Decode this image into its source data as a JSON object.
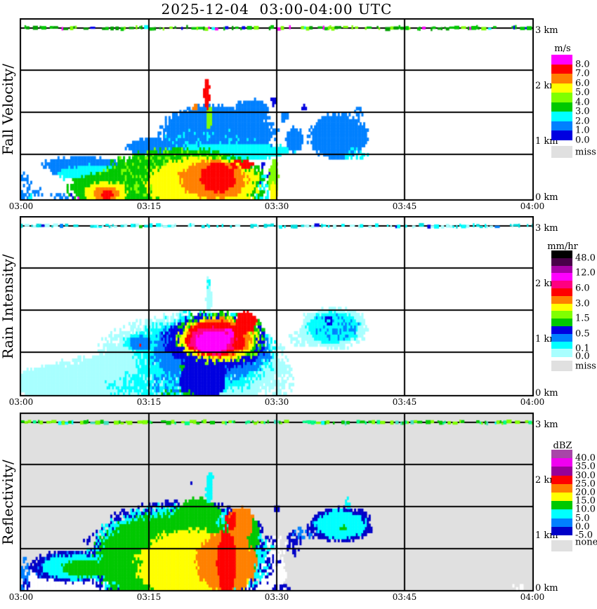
{
  "title": "2025-12-04  03:00-04:00 UTC",
  "x_axis": {
    "labels": [
      "03:00",
      "03:15",
      "03:30",
      "03:45",
      "04:00"
    ]
  },
  "y_axis": {
    "labels": [
      "3 km",
      "2 km",
      "1 km",
      "0 km"
    ]
  },
  "chart_data": [
    {
      "type": "heatmap",
      "name": "fall-velocity",
      "axis_label": "Fall Velocity/",
      "unit": "m/s",
      "time_range": [
        "03:00",
        "04:00"
      ],
      "height_range_km": [
        0,
        3
      ],
      "background": "#FFFFFF",
      "legend": {
        "title": "m/s",
        "labels": [
          "8.0",
          "7.0",
          "6.0",
          "5.0",
          "4.0",
          "3.0",
          "2.0",
          "1.0",
          "0.0"
        ],
        "label_boundaries": [
          1,
          2,
          3,
          4,
          5,
          6,
          7,
          8,
          9
        ],
        "swatches": [
          "#FF00FF",
          "#FF0000",
          "#FF8000",
          "#FFFF00",
          "#80FF00",
          "#00C800",
          "#00FFFF",
          "#0080FF",
          "#0000E0"
        ],
        "missing_label": "miss",
        "missing_color": "#E0E0E0"
      },
      "palette": [
        "#0000E0",
        "#0080FF",
        "#00FFFF",
        "#00C800",
        "#80FF00",
        "#FFFF00",
        "#FF8000",
        "#FF0000",
        "#FF00FF"
      ],
      "strip": {
        "main": [
          "#80FF00",
          "#00C800",
          "#00A000"
        ],
        "rare": [
          "#0000F0",
          "#FF00FF",
          "#00FFFF"
        ],
        "density": 0.5
      },
      "seed": 11,
      "blobs": [
        [
          0.385,
          1.17,
          0.118,
          0.5,
          1,
          0.35,
          1
        ],
        [
          0.255,
          0.92,
          0.05,
          0.16,
          1,
          0.4,
          1
        ],
        [
          0.45,
          1.58,
          0.035,
          0.18,
          1,
          0.4,
          1
        ],
        [
          0.4,
          1.32,
          0.1,
          0.35,
          0,
          0.8,
          0.22
        ],
        [
          0.36,
          1.02,
          0.09,
          0.22,
          2,
          0.8,
          0.18
        ],
        [
          0.415,
          0.85,
          0.12,
          0.15,
          2,
          0.4,
          1
        ],
        [
          0.62,
          1.1,
          0.06,
          0.42,
          1,
          0.35,
          1
        ],
        [
          0.62,
          1.15,
          0.05,
          0.33,
          0,
          0.7,
          0.28
        ],
        [
          0.655,
          0.8,
          0.025,
          0.13,
          2,
          0.5,
          0.5
        ],
        [
          0.66,
          1.52,
          0.01,
          0.1,
          1,
          0.5,
          0.6
        ],
        [
          0.535,
          1.05,
          0.018,
          0.22,
          1,
          0.5,
          1
        ],
        [
          0.515,
          1.45,
          0.01,
          0.09,
          1,
          0.4,
          0.7
        ],
        [
          0.553,
          1.6,
          0.005,
          0.06,
          0,
          0.3,
          0.8
        ],
        [
          0.492,
          1.72,
          0.006,
          0.09,
          0,
          0.3,
          0.8
        ],
        [
          0.363,
          1.85,
          0.006,
          0.28,
          7,
          0.3,
          1
        ],
        [
          0.363,
          2.07,
          0.005,
          0.06,
          6,
          0.3,
          1
        ],
        [
          0.368,
          1.42,
          0.006,
          0.22,
          4,
          0.4,
          1
        ],
        [
          0.34,
          1.62,
          0.005,
          0.05,
          6,
          0.3,
          0.9
        ],
        [
          0.315,
          0.3,
          0.17,
          0.64,
          3,
          0.35,
          1
        ],
        [
          0.33,
          0.72,
          0.085,
          0.16,
          3,
          0.5,
          1
        ],
        [
          0.3,
          0.45,
          0.14,
          0.45,
          4,
          0.7,
          0.25
        ],
        [
          0.355,
          0.28,
          0.115,
          0.5,
          5,
          0.35,
          1
        ],
        [
          0.295,
          0.3,
          0.009,
          0.3,
          3,
          0.3,
          0.85
        ],
        [
          0.322,
          0.25,
          0.007,
          0.25,
          3,
          0.3,
          0.85
        ],
        [
          0.375,
          0.35,
          0.07,
          0.36,
          6,
          0.35,
          1
        ],
        [
          0.385,
          0.38,
          0.037,
          0.28,
          7,
          0.3,
          1
        ],
        [
          0.43,
          0.62,
          0.025,
          0.08,
          7,
          0.3,
          0.8
        ],
        [
          0.12,
          0.62,
          0.08,
          0.14,
          1,
          0.45,
          1
        ],
        [
          0.072,
          0.55,
          0.017,
          0.14,
          1,
          0.4,
          1
        ],
        [
          0.145,
          0.45,
          0.075,
          0.17,
          2,
          0.45,
          1
        ],
        [
          0.175,
          0.2,
          0.088,
          0.3,
          3,
          0.4,
          1
        ],
        [
          0.165,
          0.13,
          0.045,
          0.2,
          5,
          0.5,
          1
        ],
        [
          0.165,
          0.1,
          0.026,
          0.14,
          6,
          0.35,
          1
        ],
        [
          0.168,
          0.08,
          0.012,
          0.09,
          7,
          0.3,
          1
        ],
        [
          0.006,
          0.2,
          0.014,
          0.25,
          1,
          0.6,
          0.55
        ],
        [
          0.033,
          0.1,
          0.012,
          0.13,
          1,
          0.5,
          0.5
        ],
        [
          0.075,
          0.06,
          0.018,
          0.08,
          1,
          0.5,
          0.45
        ],
        [
          0.1,
          0.05,
          0.008,
          0.05,
          0,
          0.4,
          0.6
        ],
        [
          0.115,
          0.03,
          0.004,
          0.03,
          8,
          0.3,
          0.8
        ],
        [
          0.02,
          0.04,
          0.006,
          0.04,
          2,
          0.4,
          0.7
        ],
        [
          0.494,
          0.3,
          0.01,
          0.42,
          4,
          0.35,
          1
        ],
        [
          0.494,
          0.12,
          0.007,
          0.18,
          5,
          0.3,
          1
        ],
        [
          0.468,
          0.2,
          0.022,
          0.3,
          2,
          0.6,
          0.6
        ],
        [
          0.47,
          0.45,
          0.018,
          0.19,
          0,
          0.5,
          0.35
        ]
      ]
    },
    {
      "type": "heatmap",
      "name": "rain-intensity",
      "axis_label": "Rain Intensity/",
      "unit": "mm/hr",
      "time_range": [
        "03:00",
        "04:00"
      ],
      "height_range_km": [
        0,
        3
      ],
      "background": "#FFFFFF",
      "legend": {
        "title": "mm/hr",
        "labels": [
          "48.0",
          "12.0",
          "6.0",
          "3.0",
          "1.5",
          "0.5",
          "0.1",
          "0.0"
        ],
        "label_boundaries": [
          1,
          3,
          5,
          7,
          9,
          11,
          13,
          14
        ],
        "swatches": [
          "#000000",
          "#480048",
          "#A800A8",
          "#FF00FF",
          "#FF0080",
          "#FF0000",
          "#FF8000",
          "#FFFF00",
          "#80FF00",
          "#00C800",
          "#0000E0",
          "#0080FF",
          "#00FFFF",
          "#A8FFFF"
        ],
        "missing_label": "miss",
        "missing_color": "#E0E0E0"
      },
      "palette": [
        "#A8FFFF",
        "#00FFFF",
        "#0080FF",
        "#0000E0",
        "#00C800",
        "#80FF00",
        "#FFFF00",
        "#FF8000",
        "#FF0000",
        "#FF0080",
        "#FF00FF",
        "#A800A8",
        "#480048",
        "#000000"
      ],
      "strip": {
        "main": [
          "#00FFFF",
          "#A8FFFF",
          "#00E0E0"
        ],
        "rare": [
          "#0080FF",
          "#0000E0",
          "#00C800"
        ],
        "density": 0.45
      },
      "seed": 22,
      "blobs": [
        [
          0.33,
          0.55,
          0.19,
          0.92,
          0,
          0.45,
          1
        ],
        [
          0.22,
          0.25,
          0.2,
          0.5,
          0,
          0.45,
          1
        ],
        [
          0.08,
          0.2,
          0.1,
          0.35,
          0,
          0.5,
          1
        ],
        [
          0.03,
          0.1,
          0.02,
          0.15,
          0,
          0.5,
          0.5
        ],
        [
          0.367,
          1.7,
          0.006,
          0.35,
          0,
          0.3,
          1
        ],
        [
          0.367,
          1.97,
          0.004,
          0.08,
          1,
          0.3,
          0.7
        ],
        [
          0.36,
          0.75,
          0.14,
          0.75,
          1,
          0.45,
          0.9
        ],
        [
          0.28,
          0.3,
          0.08,
          0.4,
          1,
          0.6,
          0.6
        ],
        [
          0.21,
          0.15,
          0.05,
          0.2,
          1,
          0.5,
          0.4
        ],
        [
          0.37,
          0.8,
          0.12,
          0.58,
          2,
          0.4,
          1
        ],
        [
          0.355,
          0.3,
          0.048,
          0.48,
          3,
          0.35,
          1
        ],
        [
          0.38,
          0.95,
          0.105,
          0.52,
          3,
          0.4,
          1
        ],
        [
          0.39,
          1.05,
          0.09,
          0.46,
          4,
          0.5,
          0.55
        ],
        [
          0.39,
          1.0,
          0.085,
          0.44,
          5,
          0.6,
          0.35
        ],
        [
          0.385,
          1.0,
          0.08,
          0.4,
          6,
          0.4,
          1
        ],
        [
          0.39,
          1.02,
          0.067,
          0.36,
          7,
          0.35,
          1
        ],
        [
          0.38,
          1.0,
          0.062,
          0.33,
          8,
          0.3,
          1
        ],
        [
          0.44,
          1.3,
          0.022,
          0.2,
          8,
          0.35,
          1
        ],
        [
          0.375,
          0.97,
          0.048,
          0.26,
          9,
          0.3,
          1
        ],
        [
          0.373,
          0.95,
          0.036,
          0.2,
          10,
          0.3,
          1
        ],
        [
          0.405,
          1.08,
          0.013,
          0.1,
          10,
          0.3,
          0.9
        ],
        [
          0.3,
          0.2,
          0.05,
          0.25,
          2,
          0.7,
          0.4
        ],
        [
          0.3,
          0.05,
          0.05,
          0.06,
          4,
          0.4,
          0.3
        ],
        [
          0.315,
          0.5,
          0.006,
          0.05,
          4,
          0.3,
          0.8
        ],
        [
          0.235,
          0.93,
          0.035,
          0.18,
          1,
          0.5,
          1
        ],
        [
          0.235,
          0.93,
          0.024,
          0.13,
          2,
          0.4,
          1
        ],
        [
          0.232,
          0.9,
          0.005,
          0.04,
          8,
          0.3,
          0.85
        ],
        [
          0.61,
          1.2,
          0.07,
          0.38,
          0,
          0.45,
          1
        ],
        [
          0.61,
          1.2,
          0.055,
          0.3,
          1,
          0.4,
          1
        ],
        [
          0.615,
          1.22,
          0.045,
          0.24,
          2,
          0.7,
          0.35
        ],
        [
          0.6,
          1.32,
          0.01,
          0.08,
          3,
          0.3,
          0.7
        ],
        [
          0.55,
          1.0,
          0.03,
          0.15,
          0,
          0.5,
          0.6
        ],
        [
          0.51,
          0.3,
          0.025,
          0.35,
          0,
          0.6,
          0.5
        ],
        [
          0.367,
          2.1,
          0.005,
          0.1,
          0,
          0.4,
          0.6
        ]
      ]
    },
    {
      "type": "heatmap",
      "name": "reflectivity",
      "axis_label": "Reflectivity/",
      "unit": "dBZ",
      "time_range": [
        "03:00",
        "04:00"
      ],
      "height_range_km": [
        0,
        3
      ],
      "background": "#E0E0E0",
      "legend": {
        "title": "dBZ",
        "labels": [
          "40.0",
          "35.0",
          "30.0",
          "25.0",
          "20.0",
          "15.0",
          "10.0",
          "5.0",
          "0.0",
          "-5.0"
        ],
        "label_boundaries": [
          1,
          2,
          3,
          4,
          5,
          6,
          7,
          8,
          9,
          10
        ],
        "swatches": [
          "#A846A8",
          "#F000F0",
          "#980098",
          "#FF0000",
          "#FF8000",
          "#FFFF00",
          "#00C800",
          "#00FFFF",
          "#0080FF",
          "#0000C8"
        ],
        "missing_label": "none",
        "missing_color": "#E0E0E0"
      },
      "palette": [
        "#FFFFFF",
        "#0000C8",
        "#0080FF",
        "#00FFFF",
        "#00C800",
        "#FFFF00",
        "#FF8000",
        "#FF0000",
        "#980098",
        "#F000F0",
        "#A846A8"
      ],
      "strip": {
        "main": [
          "#00C800",
          "#00FF88",
          "#80FF00"
        ],
        "rare": [
          "#00FFFF",
          "#40E0C0"
        ],
        "density": 0.55
      },
      "seed": 33,
      "blobs": [
        [
          0.09,
          0.15,
          0.105,
          0.35,
          0,
          0.45,
          1
        ],
        [
          0.3,
          0.06,
          0.21,
          0.14,
          0,
          0.5,
          1
        ],
        [
          0.49,
          0.25,
          0.03,
          0.45,
          0,
          0.45,
          1
        ],
        [
          0.5,
          0.78,
          0.02,
          0.2,
          0,
          0.5,
          0.6
        ],
        [
          0.01,
          0.07,
          0.015,
          0.1,
          0,
          0.4,
          0.7
        ],
        [
          0.31,
          0.6,
          0.19,
          1.02,
          1,
          0.45,
          0.8
        ],
        [
          0.31,
          0.6,
          0.18,
          0.95,
          3,
          0.4,
          1
        ],
        [
          0.3,
          0.55,
          0.162,
          0.88,
          4,
          0.35,
          1
        ],
        [
          0.345,
          1.35,
          0.048,
          0.3,
          4,
          0.45,
          1
        ],
        [
          0.44,
          1.0,
          0.028,
          0.4,
          4,
          0.4,
          1
        ],
        [
          0.34,
          0.45,
          0.12,
          0.68,
          5,
          0.35,
          1
        ],
        [
          0.4,
          0.5,
          0.062,
          0.58,
          6,
          0.35,
          1
        ],
        [
          0.43,
          1.2,
          0.027,
          0.3,
          6,
          0.4,
          1
        ],
        [
          0.402,
          0.5,
          0.02,
          0.62,
          7,
          0.3,
          1
        ],
        [
          0.41,
          1.25,
          0.012,
          0.18,
          7,
          0.3,
          0.8
        ],
        [
          0.405,
          1.05,
          0.005,
          0.15,
          1,
          0.4,
          0.6
        ],
        [
          0.1,
          0.42,
          0.088,
          0.3,
          1,
          0.4,
          1
        ],
        [
          0.105,
          0.42,
          0.072,
          0.24,
          3,
          0.4,
          1
        ],
        [
          0.1,
          0.42,
          0.076,
          0.26,
          2,
          0.7,
          0.3
        ],
        [
          0.125,
          0.4,
          0.05,
          0.16,
          4,
          0.5,
          1
        ],
        [
          0.005,
          0.3,
          0.012,
          0.3,
          2,
          0.5,
          0.5
        ],
        [
          0.01,
          0.12,
          0.01,
          0.12,
          1,
          0.4,
          0.5
        ],
        [
          0.367,
          1.75,
          0.006,
          0.38,
          3,
          0.3,
          1
        ],
        [
          0.372,
          2.02,
          0.004,
          0.07,
          3,
          0.3,
          0.8
        ],
        [
          0.335,
          1.9,
          0.004,
          0.05,
          1,
          0.3,
          0.8
        ],
        [
          0.5,
          1.45,
          0.005,
          0.08,
          1,
          0.3,
          0.8
        ],
        [
          0.535,
          0.85,
          0.015,
          0.25,
          1,
          0.6,
          0.55
        ],
        [
          0.55,
          1.0,
          0.02,
          0.12,
          2,
          0.5,
          0.5
        ],
        [
          0.625,
          1.18,
          0.064,
          0.33,
          1,
          0.4,
          1
        ],
        [
          0.625,
          1.18,
          0.053,
          0.26,
          3,
          0.35,
          1
        ],
        [
          0.62,
          1.15,
          0.05,
          0.22,
          2,
          0.7,
          0.3
        ],
        [
          0.63,
          1.12,
          0.008,
          0.05,
          4,
          0.3,
          0.85
        ],
        [
          0.64,
          1.55,
          0.006,
          0.12,
          3,
          0.4,
          0.7
        ],
        [
          0.575,
          1.05,
          0.02,
          0.12,
          1,
          0.5,
          0.5
        ],
        [
          0.51,
          0.04,
          0.02,
          0.06,
          1,
          0.4,
          0.6
        ],
        [
          0.97,
          0.05,
          0.015,
          0.05,
          0,
          0.5,
          0.4
        ]
      ]
    }
  ]
}
